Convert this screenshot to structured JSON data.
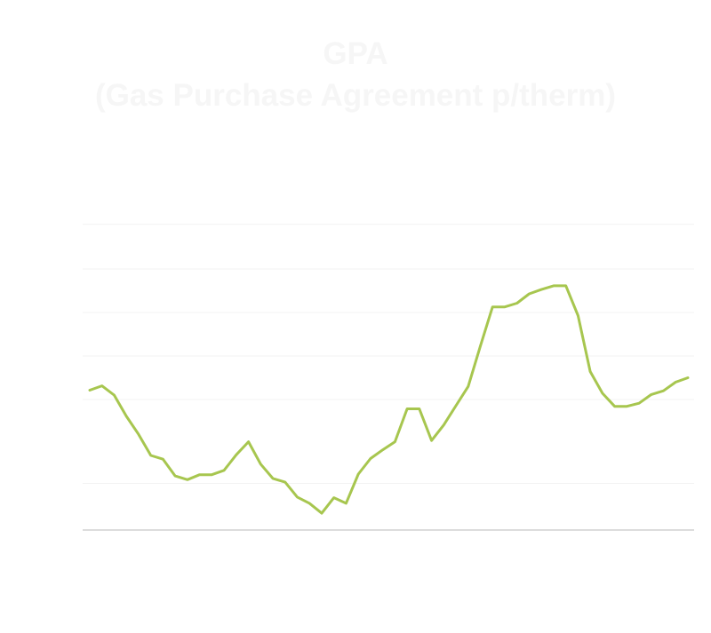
{
  "chart_data": {
    "type": "line",
    "title": "GPA",
    "subtitle": "(Gas Purchase Agreement p/therm)",
    "xlabel": "",
    "ylabel": "",
    "grid": true,
    "legend": "none",
    "ylim": [
      0,
      600
    ],
    "y_gridlines": [
      0,
      75,
      210,
      280,
      350,
      420,
      492
    ],
    "series": [
      {
        "color": "#a7c64f",
        "values": [
          225,
          232,
          217,
          183,
          154,
          120,
          114,
          87,
          81,
          89,
          89,
          96,
          121,
          142,
          106,
          83,
          77,
          53,
          43,
          27,
          52,
          43,
          90,
          115,
          129,
          142,
          195,
          195,
          144,
          169,
          200,
          231,
          296,
          359,
          359,
          365,
          380,
          387,
          393,
          393,
          345,
          255,
          220,
          199,
          199,
          204,
          218,
          224,
          238,
          245
        ]
      }
    ]
  }
}
